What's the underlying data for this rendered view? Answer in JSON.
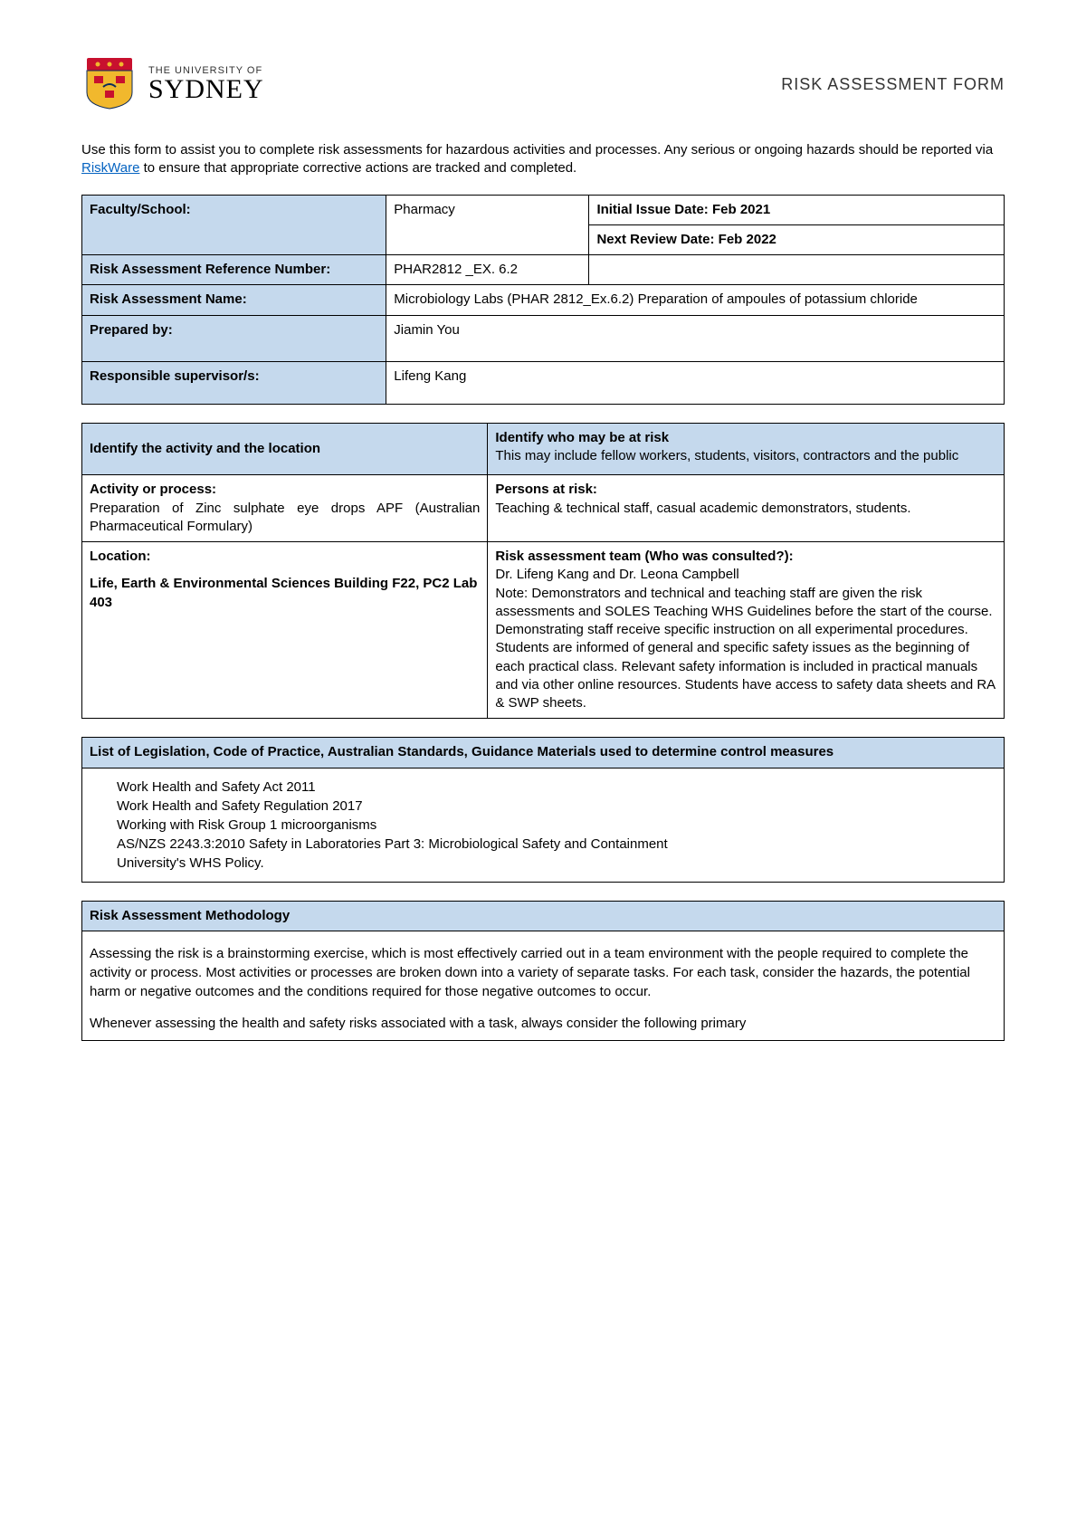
{
  "header": {
    "uni_line1": "THE UNIVERSITY OF",
    "uni_line2": "SYDNEY",
    "form_title": "RISK ASSESSMENT FORM",
    "logo_colors": {
      "shield_red": "#c8102e",
      "shield_gold": "#f1b82d",
      "shield_blue": "#0d2b5c"
    }
  },
  "intro": {
    "text_before": "Use this form to assist you to complete risk assessments for hazardous activities and processes. Any serious or ongoing hazards should be reported via ",
    "link_text": "RiskWare",
    "text_after": " to ensure that appropriate corrective actions are tracked and completed."
  },
  "table1": {
    "faculty_label": "Faculty/School:",
    "faculty_value": "Pharmacy",
    "issue_date_label": "Initial Issue Date:",
    "issue_date_value": "Feb 2021",
    "review_date_label": "Next Review Date:",
    "review_date_value": "Feb 2022",
    "ref_label": "Risk Assessment Reference Number:",
    "ref_value": "PHAR2812 _EX. 6.2",
    "name_label": "Risk Assessment Name:",
    "name_value": "Microbiology Labs (PHAR 2812_Ex.6.2) Preparation of ampoules of potassium chloride",
    "prepared_label": "Prepared by:",
    "prepared_value": "Jiamin You",
    "supervisor_label": "Responsible supervisor/s:",
    "supervisor_value": "Lifeng Kang"
  },
  "table2": {
    "col1_header": "Identify the activity and the location",
    "col2_header": "Identify who may be at risk",
    "col2_sub": "This may include fellow workers, students, visitors, contractors and the public",
    "activity_label": "Activity or process:",
    "activity_value": "Preparation of Zinc sulphate eye drops APF (Australian Pharmaceutical Formulary)",
    "persons_label": "Persons at risk:",
    "persons_value": "Teaching & technical staff, casual academic demonstrators, students.",
    "location_label": "Location:",
    "location_value": "Life, Earth & Environmental Sciences Building F22, PC2 Lab 403",
    "team_label": "Risk assessment team (Who was consulted?):",
    "team_value": "Dr. Lifeng Kang and Dr. Leona Campbell\nNote: Demonstrators and technical and teaching staff are given the risk assessments and SOLES Teaching WHS Guidelines before the start of the course. Demonstrating staff receive specific instruction on all experimental procedures. Students are informed of general and specific safety issues as the beginning of each practical class. Relevant safety information is included in practical manuals and via other online resources. Students have access to safety data sheets and RA & SWP sheets."
  },
  "legislation": {
    "header": "List of Legislation, Code of Practice, Australian Standards, Guidance Materials used to determine control measures",
    "items": [
      "Work Health and Safety Act 2011",
      "Work Health and Safety Regulation 2017",
      "Working with Risk Group 1 microorganisms",
      "AS/NZS 2243.3:2010 Safety in Laboratories Part 3: Microbiological Safety and Containment",
      "University's WHS Policy."
    ]
  },
  "methodology": {
    "header": "Risk Assessment Methodology",
    "para1": "Assessing the risk is a brainstorming exercise, which is most effectively carried out in a team environment with the people required to complete the activity or process. Most activities or processes are broken down into a variety of separate tasks. For each task, consider the hazards, the potential harm or negative outcomes and the conditions required for those negative outcomes to occur.",
    "para2": "Whenever assessing the health and safety risks associated with a task, always consider the following primary"
  },
  "colors": {
    "cell_bg": "#c5d9ed",
    "link": "#0563c1",
    "border": "#000000"
  }
}
